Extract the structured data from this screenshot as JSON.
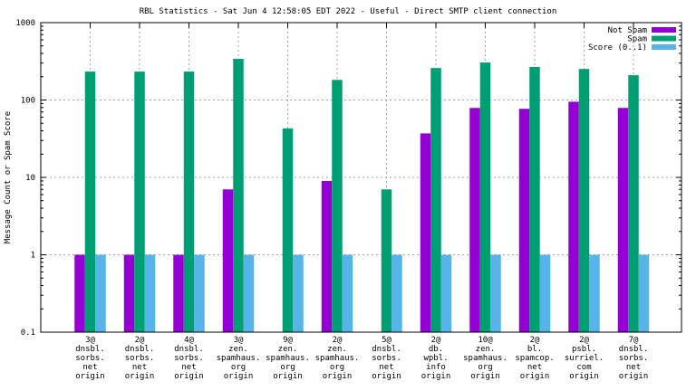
{
  "chart_data": {
    "type": "bar",
    "title": "RBL Statistics - Sat Jun  4 12:58:05 EDT 2022 - Useful - Direct SMTP client connection",
    "xlabel": "",
    "ylabel": "Message Count or Spam Score",
    "yscale": "log",
    "ylim": [
      0.1,
      1000
    ],
    "yticks": [
      {
        "value": 0.1,
        "label": "0.1"
      },
      {
        "value": 1,
        "label": "1"
      },
      {
        "value": 10,
        "label": "10"
      },
      {
        "value": 100,
        "label": "100"
      },
      {
        "value": 1000,
        "label": "1000"
      }
    ],
    "grid": true,
    "legend_position": "top-right",
    "categories": [
      [
        "3@",
        "dnsbl.",
        "sorbs.",
        "net",
        "origin"
      ],
      [
        "2@",
        "dnsbl.",
        "sorbs.",
        "net",
        "origin"
      ],
      [
        "4@",
        "dnsbl.",
        "sorbs.",
        "net",
        "origin"
      ],
      [
        "3@",
        "zen.",
        "spamhaus.",
        "org",
        "origin"
      ],
      [
        "9@",
        "zen.",
        "spamhaus.",
        "org",
        "origin"
      ],
      [
        "2@",
        "zen.",
        "spamhaus.",
        "org",
        "origin"
      ],
      [
        "5@",
        "dnsbl.",
        "sorbs.",
        "net",
        "origin"
      ],
      [
        "2@",
        "db.",
        "wpbl.",
        "info",
        "origin"
      ],
      [
        "10@",
        "zen.",
        "spamhaus.",
        "org",
        "origin"
      ],
      [
        "2@",
        "bl.",
        "spamcop.",
        "net",
        "origin"
      ],
      [
        "2@",
        "psbl.",
        "surriel.",
        "com",
        "origin"
      ],
      [
        "7@",
        "dnsbl.",
        "sorbs.",
        "net",
        "origin"
      ]
    ],
    "series": [
      {
        "name": "Not Spam",
        "color": "#9400d3",
        "values": [
          1,
          1,
          1,
          7,
          null,
          9,
          null,
          37,
          79,
          77,
          95,
          79
        ]
      },
      {
        "name": "Spam",
        "color": "#009e73",
        "values": [
          233,
          233,
          233,
          340,
          43,
          182,
          7,
          259,
          305,
          267,
          252,
          209
        ]
      },
      {
        "name": "Score (0..1)",
        "color": "#56b4e9",
        "values": [
          1,
          1,
          1,
          1,
          1,
          1,
          1,
          1,
          1,
          1,
          1,
          1
        ]
      }
    ]
  }
}
